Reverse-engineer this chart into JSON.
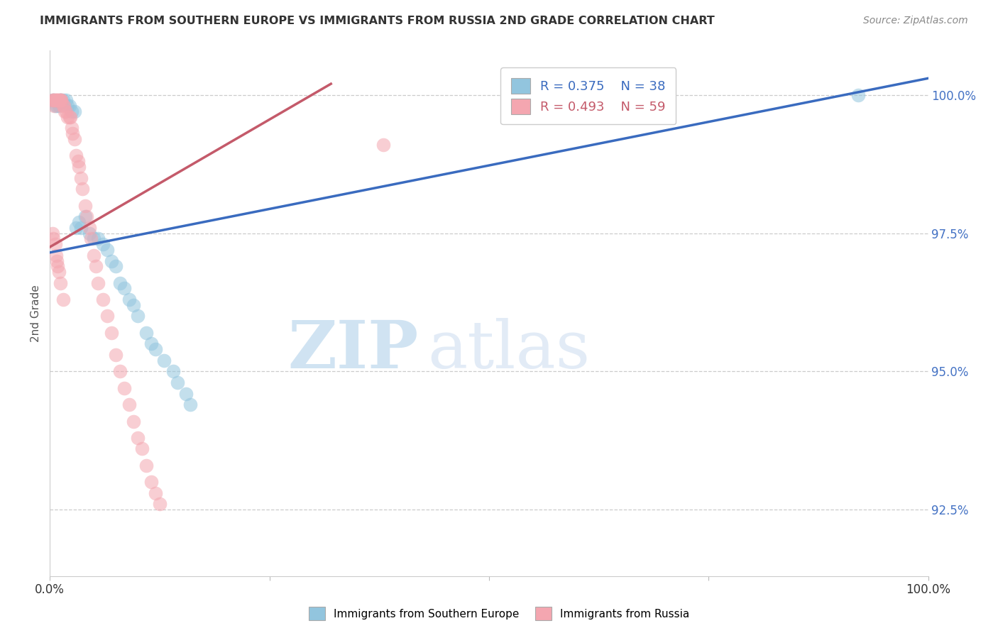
{
  "title": "IMMIGRANTS FROM SOUTHERN EUROPE VS IMMIGRANTS FROM RUSSIA 2ND GRADE CORRELATION CHART",
  "source": "Source: ZipAtlas.com",
  "ylabel": "2nd Grade",
  "yticks": [
    1.0,
    0.975,
    0.95,
    0.925
  ],
  "ytick_labels": [
    "100.0%",
    "97.5%",
    "95.0%",
    "92.5%"
  ],
  "xlim": [
    0.0,
    1.0
  ],
  "ylim": [
    0.913,
    1.008
  ],
  "legend_blue_R": "0.375",
  "legend_blue_N": "38",
  "legend_pink_R": "0.493",
  "legend_pink_N": "59",
  "legend_label_blue": "Immigrants from Southern Europe",
  "legend_label_pink": "Immigrants from Russia",
  "blue_color": "#92c5de",
  "pink_color": "#f4a6b0",
  "blue_line_color": "#3a6bbf",
  "pink_line_color": "#c45a6a",
  "grid_color": "#cccccc",
  "bg_color": "#ffffff",
  "blue_line_x": [
    0.0,
    1.0
  ],
  "blue_line_y": [
    0.9715,
    1.003
  ],
  "pink_line_x": [
    0.0,
    0.32
  ],
  "pink_line_y": [
    0.9725,
    1.002
  ],
  "watermark_zip": "ZIP",
  "watermark_atlas": "atlas",
  "blue_x": [
    0.003,
    0.005,
    0.006,
    0.008,
    0.01,
    0.012,
    0.013,
    0.015,
    0.018,
    0.02,
    0.022,
    0.025,
    0.028,
    0.03,
    0.033,
    0.035,
    0.04,
    0.045,
    0.05,
    0.055,
    0.06,
    0.065,
    0.07,
    0.075,
    0.08,
    0.085,
    0.09,
    0.095,
    0.1,
    0.11,
    0.115,
    0.12,
    0.13,
    0.14,
    0.145,
    0.155,
    0.16,
    0.92
  ],
  "blue_y": [
    0.999,
    0.999,
    0.998,
    0.998,
    0.998,
    0.999,
    0.999,
    0.999,
    0.999,
    0.998,
    0.998,
    0.997,
    0.997,
    0.976,
    0.977,
    0.976,
    0.978,
    0.975,
    0.974,
    0.974,
    0.973,
    0.972,
    0.97,
    0.969,
    0.966,
    0.965,
    0.963,
    0.962,
    0.96,
    0.957,
    0.955,
    0.954,
    0.952,
    0.95,
    0.948,
    0.946,
    0.944,
    1.0
  ],
  "pink_x": [
    0.003,
    0.004,
    0.005,
    0.005,
    0.006,
    0.007,
    0.008,
    0.009,
    0.01,
    0.01,
    0.012,
    0.013,
    0.013,
    0.015,
    0.016,
    0.017,
    0.018,
    0.02,
    0.022,
    0.023,
    0.025,
    0.026,
    0.028,
    0.03,
    0.032,
    0.033,
    0.035,
    0.037,
    0.04,
    0.042,
    0.045,
    0.047,
    0.05,
    0.052,
    0.055,
    0.06,
    0.065,
    0.07,
    0.075,
    0.08,
    0.085,
    0.09,
    0.095,
    0.1,
    0.105,
    0.11,
    0.115,
    0.12,
    0.125,
    0.003,
    0.004,
    0.006,
    0.007,
    0.008,
    0.009,
    0.01,
    0.012,
    0.015,
    0.38
  ],
  "pink_y": [
    0.999,
    0.999,
    0.998,
    0.999,
    0.999,
    0.999,
    0.999,
    0.999,
    0.999,
    0.999,
    0.999,
    0.999,
    0.999,
    0.998,
    0.998,
    0.997,
    0.997,
    0.996,
    0.996,
    0.996,
    0.994,
    0.993,
    0.992,
    0.989,
    0.988,
    0.987,
    0.985,
    0.983,
    0.98,
    0.978,
    0.976,
    0.974,
    0.971,
    0.969,
    0.966,
    0.963,
    0.96,
    0.957,
    0.953,
    0.95,
    0.947,
    0.944,
    0.941,
    0.938,
    0.936,
    0.933,
    0.93,
    0.928,
    0.926,
    0.975,
    0.974,
    0.973,
    0.971,
    0.97,
    0.969,
    0.968,
    0.966,
    0.963,
    0.991
  ]
}
